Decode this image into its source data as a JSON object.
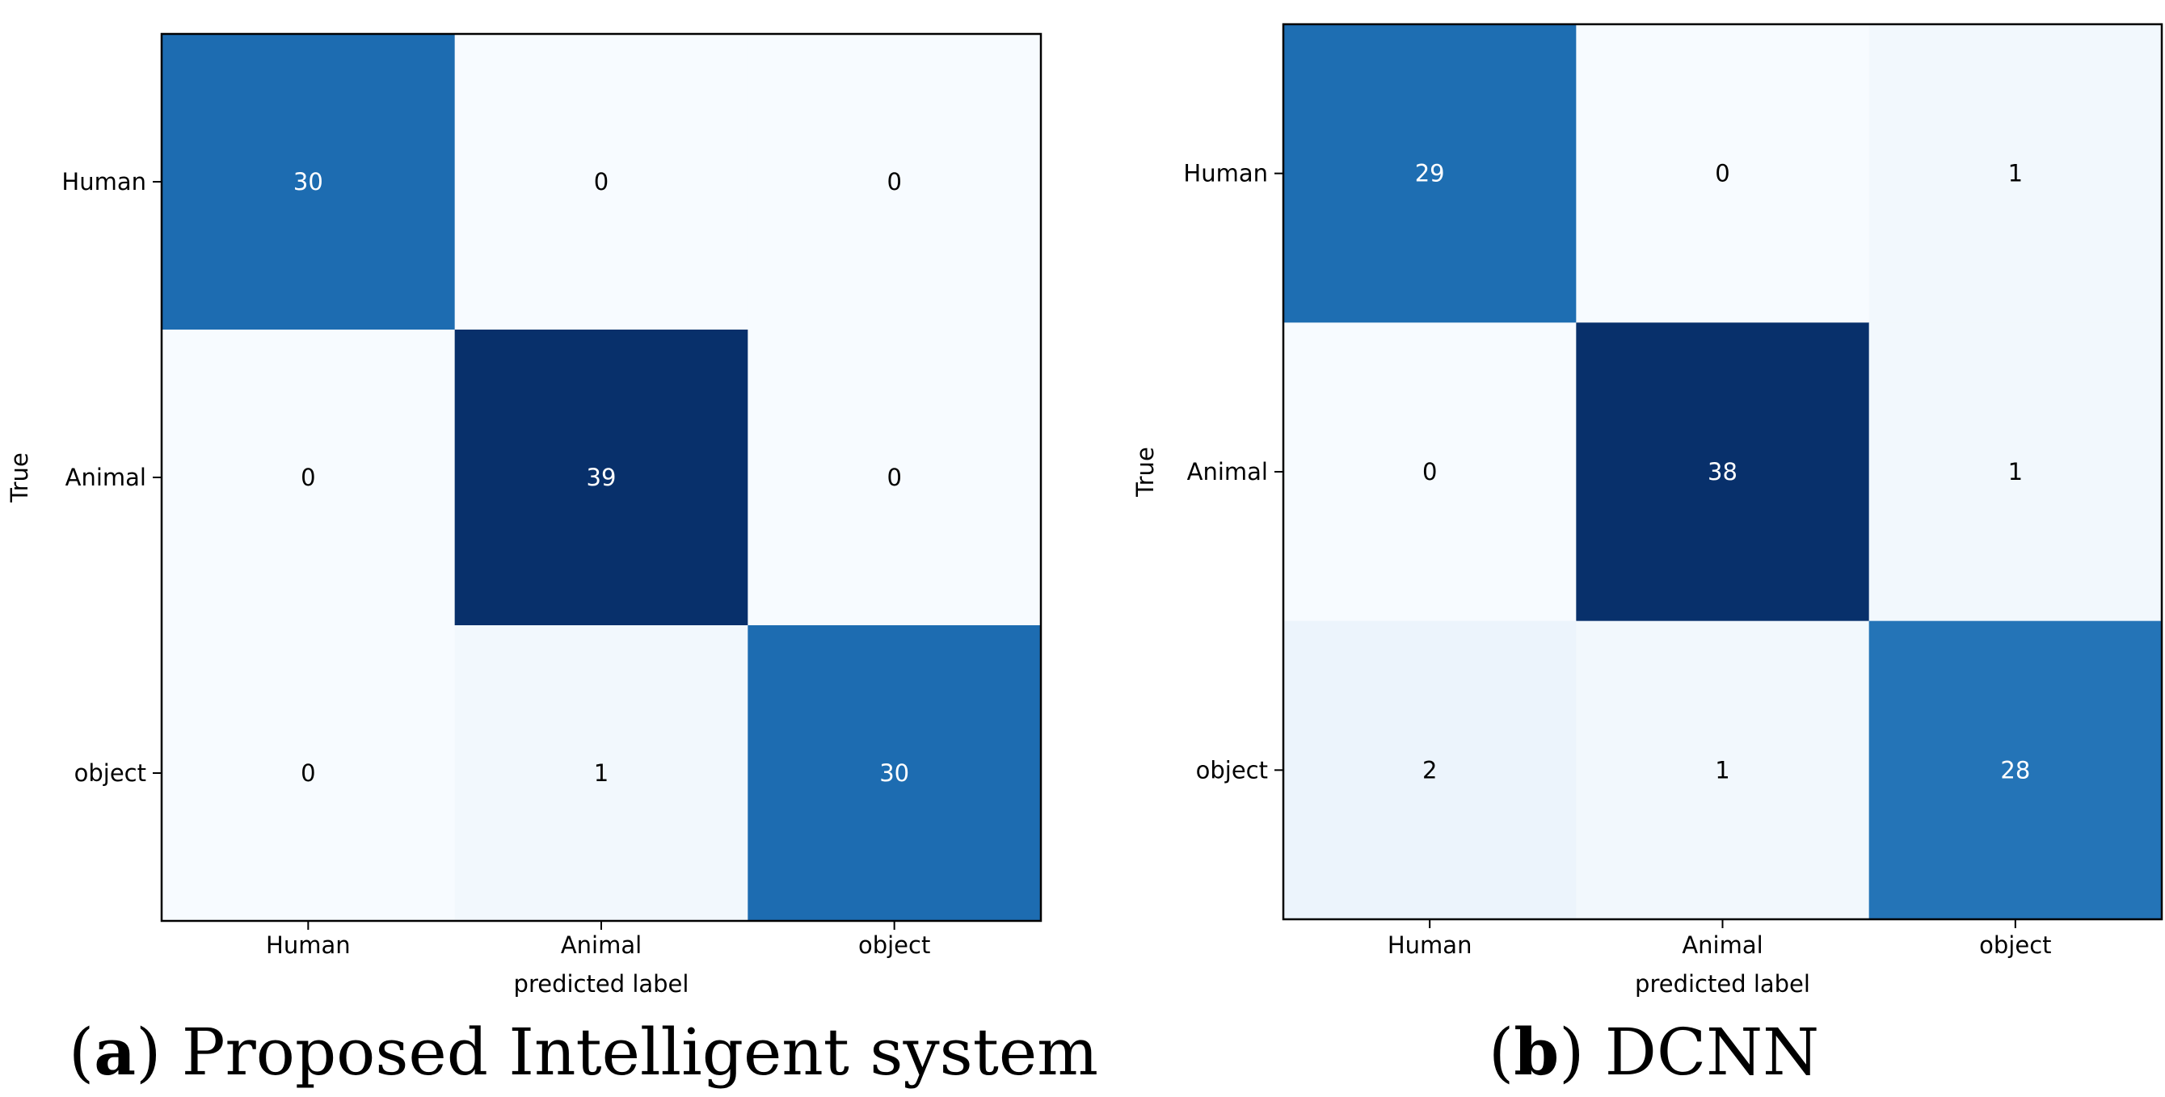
{
  "chart_data": [
    {
      "type": "heatmap",
      "panel_letter": "a",
      "caption": "Proposed Intelligent system",
      "rows": [
        "Human",
        "Animal",
        "object"
      ],
      "cols": [
        "Human",
        "Animal",
        "object"
      ],
      "values": [
        [
          30,
          0,
          0
        ],
        [
          0,
          39,
          0
        ],
        [
          0,
          1,
          30
        ]
      ],
      "ylabel": "True",
      "xlabel": "predicted label",
      "colormap": "Blues",
      "vmin": 0,
      "vmax": 39
    },
    {
      "type": "heatmap",
      "panel_letter": "b",
      "caption": "DCNN",
      "rows": [
        "Human",
        "Animal",
        "object"
      ],
      "cols": [
        "Human",
        "Animal",
        "object"
      ],
      "values": [
        [
          29,
          0,
          1
        ],
        [
          0,
          38,
          1
        ],
        [
          2,
          1,
          28
        ]
      ],
      "ylabel": "True",
      "xlabel": "predicted label",
      "colormap": "Blues",
      "vmin": 0,
      "vmax": 38
    }
  ],
  "colors": {
    "cmap_low": "#f7fbff",
    "cmap_mid": "#6baed6",
    "cmap_high": "#08306b",
    "text_dark": "#000000",
    "text_light": "#ffffff"
  }
}
